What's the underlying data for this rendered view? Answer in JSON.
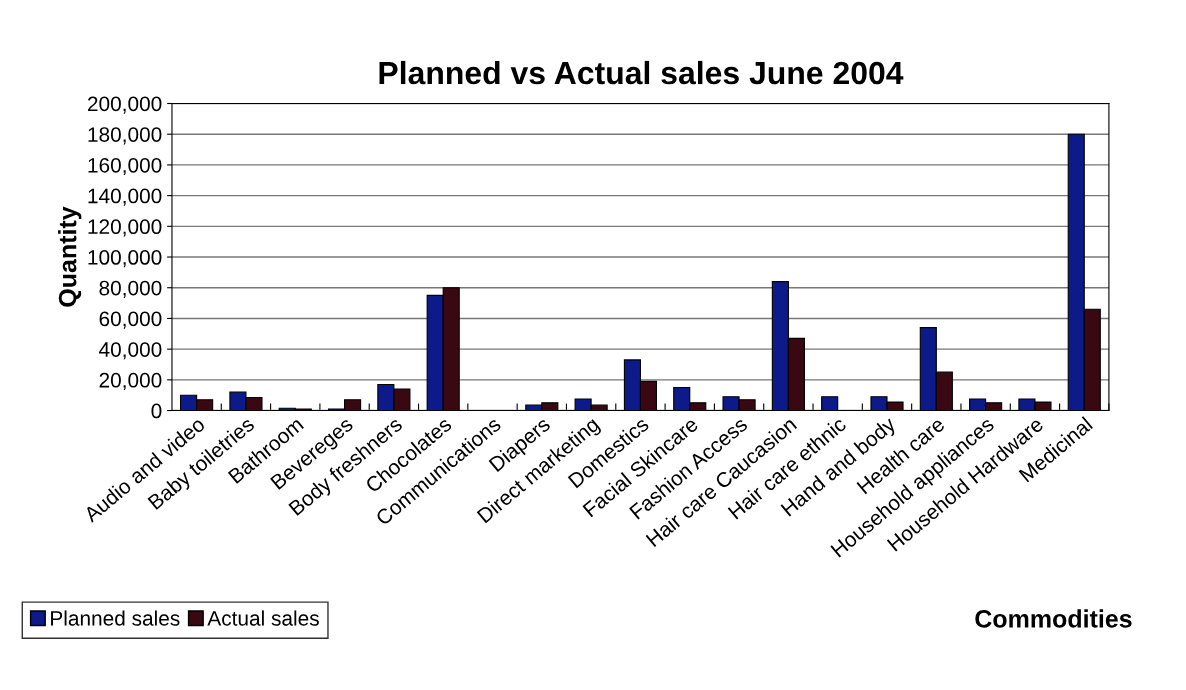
{
  "chart_data": {
    "type": "bar",
    "title": "Planned vs Actual sales June 2004",
    "xlabel": "Commodities",
    "ylabel": "Quantity",
    "categories": [
      "Audio and video",
      "Baby toiletries",
      "Bathroom",
      "Bevereges",
      "Body freshners",
      "Chocolates",
      "Communications",
      "Diapers",
      "Direct marketing",
      "Domestics",
      "Facial Skincare",
      "Fashion Access",
      "Hair care Caucasion",
      "Hair care ethnic",
      "Hand and body",
      "Health care",
      "Household appliances",
      "Household Hardware",
      "Medicinal"
    ],
    "series": [
      {
        "name": "Planned sales",
        "color": "#0d1a8a",
        "values": [
          10000,
          12000,
          1500,
          1000,
          17000,
          75000,
          0,
          3500,
          7500,
          33000,
          15000,
          9000,
          84000,
          9000,
          9000,
          54000,
          7500,
          7500,
          180000
        ]
      },
      {
        "name": "Actual sales",
        "color": "#3a0812",
        "values": [
          7000,
          8500,
          1000,
          7000,
          14000,
          80000,
          0,
          5000,
          3500,
          19000,
          5000,
          7000,
          47000,
          0,
          5500,
          25000,
          5000,
          5500,
          66000
        ]
      }
    ],
    "ylim": [
      0,
      200000
    ],
    "yticks": [
      {
        "value": 0,
        "label": "0"
      },
      {
        "value": 20000,
        "label": "20,000"
      },
      {
        "value": 40000,
        "label": "40,000"
      },
      {
        "value": 60000,
        "label": "60,000"
      },
      {
        "value": 80000,
        "label": "80,000"
      },
      {
        "value": 100000,
        "label": "100,000"
      },
      {
        "value": 120000,
        "label": "120,000"
      },
      {
        "value": 140000,
        "label": "140,000"
      },
      {
        "value": 160000,
        "label": "160,000"
      },
      {
        "value": 180000,
        "label": "180,000"
      },
      {
        "value": 200000,
        "label": "200,000"
      }
    ],
    "grid": "y",
    "legend": "bottom left"
  }
}
